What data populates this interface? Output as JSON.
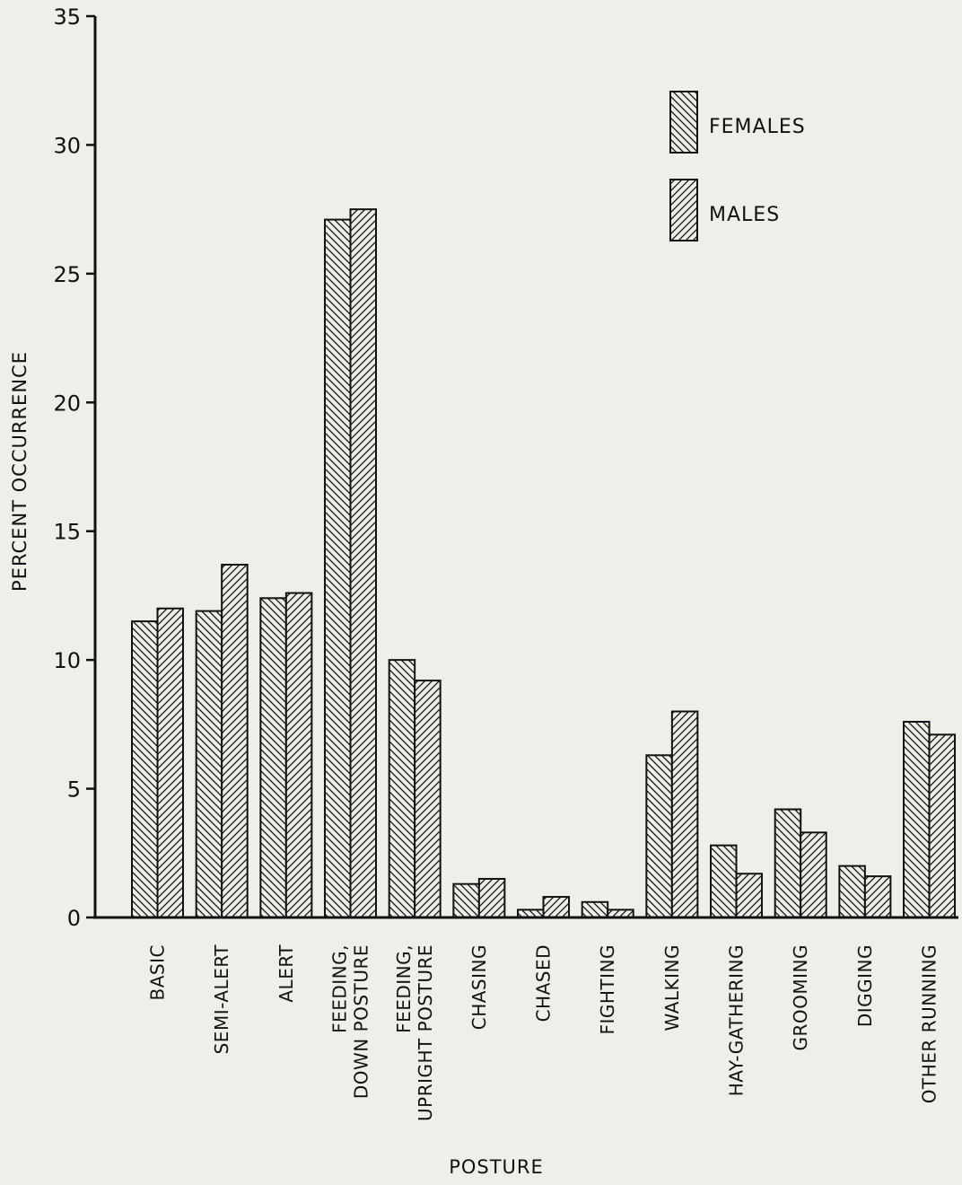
{
  "chart_data": {
    "type": "bar",
    "title": "",
    "xlabel": "POSTURE",
    "ylabel": "PERCENT OCCURRENCE",
    "ylim": [
      0,
      35
    ],
    "yticks": [
      "0",
      "5",
      "10",
      "15",
      "20",
      "25",
      "30",
      "35"
    ],
    "grid": false,
    "legend_position": "top-right",
    "categories": [
      [
        "BASIC"
      ],
      [
        "SEMI-ALERT"
      ],
      [
        "ALERT"
      ],
      [
        "FEEDING,",
        "DOWN POSTURE"
      ],
      [
        "FEEDING,",
        "UPRIGHT POSTURE"
      ],
      [
        "CHASING"
      ],
      [
        "CHASED"
      ],
      [
        "FIGHTING"
      ],
      [
        "WALKING"
      ],
      [
        "HAY-GATHERING"
      ],
      [
        "GROOMING"
      ],
      [
        "DIGGING"
      ],
      [
        "OTHER RUNNING"
      ]
    ],
    "series": [
      {
        "name": "FEMALES",
        "hatch": "backslash",
        "values": [
          11.5,
          11.9,
          12.4,
          27.1,
          10.0,
          1.3,
          0.3,
          0.6,
          6.3,
          2.8,
          4.2,
          2.0,
          7.6
        ]
      },
      {
        "name": "MALES",
        "hatch": "slash",
        "values": [
          12.0,
          13.7,
          12.6,
          27.5,
          9.2,
          1.5,
          0.8,
          0.3,
          8.0,
          1.7,
          3.3,
          1.6,
          7.1
        ]
      }
    ]
  }
}
